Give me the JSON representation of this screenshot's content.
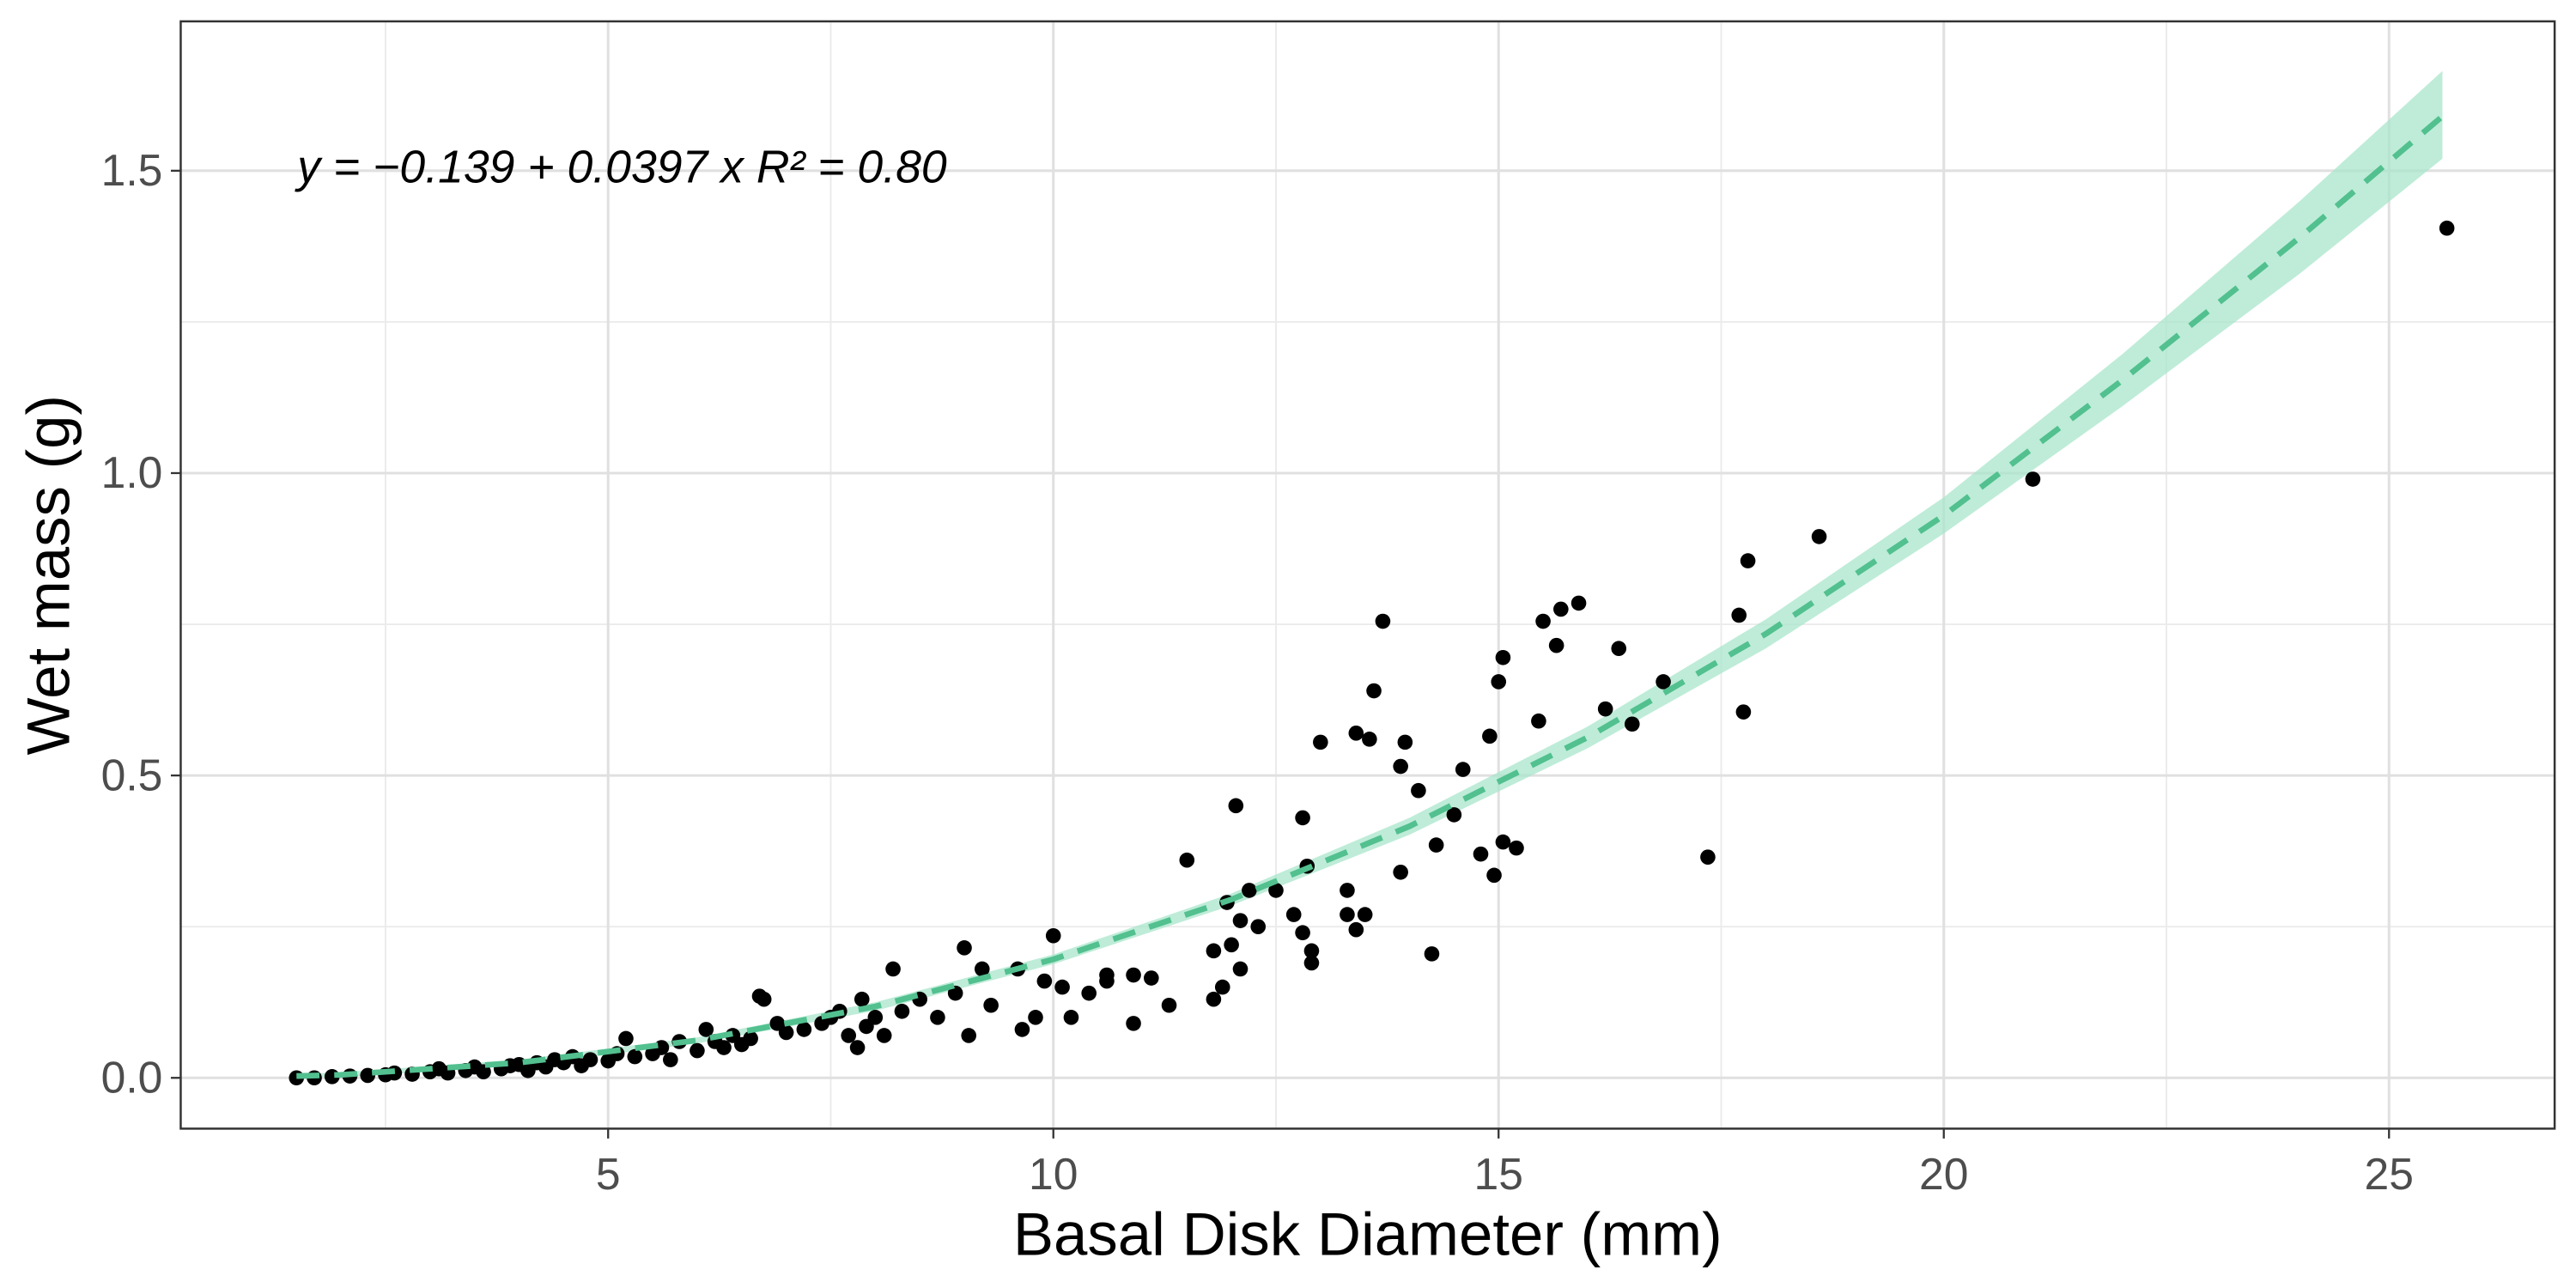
{
  "chart_data": {
    "type": "scatter",
    "x_label": "Basal Disk Diameter (mm)",
    "y_label": "Wet mass (g)",
    "annotation": "y = −0.139 + 0.0397 x   R² = 0.80",
    "xlim": [
      0.2,
      26.86
    ],
    "ylim": [
      -0.084,
      1.747
    ],
    "xticks": [
      5,
      10,
      15,
      20,
      25
    ],
    "yticks": [
      {
        "value": 0,
        "label": "0.0"
      },
      0.5,
      {
        "value": 1,
        "label": "1.0"
      },
      1.5
    ],
    "x_minor_ticks": [
      2.5,
      7.5,
      12.5,
      17.5,
      22.5
    ],
    "y_minor_ticks": [
      0.25,
      0.75,
      1.25
    ],
    "grid": true,
    "points": {
      "color": "#000000",
      "x": [
        1.5,
        1.7,
        1.9,
        2.1,
        2.3,
        2.5,
        2.6,
        2.8,
        3.0,
        3.1,
        3.2,
        3.4,
        3.5,
        3.6,
        3.8,
        3.9,
        4.0,
        4.1,
        4.2,
        4.3,
        4.4,
        4.5,
        4.6,
        4.7,
        4.8,
        5.0,
        5.1,
        5.2,
        5.3,
        5.5,
        5.6,
        5.7,
        5.8,
        6.0,
        6.1,
        6.2,
        6.3,
        6.4,
        6.5,
        6.6,
        6.7,
        6.75,
        6.9,
        7.0,
        7.2,
        7.4,
        7.5,
        7.6,
        7.7,
        7.8,
        7.85,
        7.9,
        8.0,
        8.1,
        8.2,
        8.3,
        8.5,
        8.7,
        8.9,
        9.0,
        9.05,
        9.2,
        9.3,
        9.6,
        9.65,
        9.8,
        9.9,
        10.0,
        10.1,
        10.2,
        10.4,
        10.6,
        10.6,
        10.9,
        10.9,
        11.1,
        11.3,
        11.5,
        11.8,
        11.8,
        11.9,
        11.95,
        12.0,
        12.05,
        12.1,
        12.1,
        12.2,
        12.3,
        12.5,
        12.7,
        12.8,
        12.8,
        12.85,
        12.9,
        12.9,
        13.0,
        13.3,
        13.3,
        13.4,
        13.4,
        13.5,
        13.55,
        13.6,
        13.7,
        13.9,
        13.95,
        13.9,
        14.1,
        14.25,
        14.3,
        14.5,
        14.6,
        14.8,
        14.9,
        14.95,
        15.0,
        15.05,
        15.05,
        15.2,
        15.45,
        15.5,
        15.65,
        15.7,
        15.9,
        16.2,
        16.35,
        16.5,
        16.85,
        17.35,
        17.7,
        17.75,
        17.8,
        18.6,
        21.0,
        25.65
      ],
      "y": [
        0.0,
        0.0,
        0.002,
        0.003,
        0.004,
        0.005,
        0.008,
        0.006,
        0.01,
        0.015,
        0.008,
        0.012,
        0.018,
        0.01,
        0.015,
        0.02,
        0.022,
        0.012,
        0.025,
        0.018,
        0.03,
        0.025,
        0.035,
        0.02,
        0.03,
        0.028,
        0.04,
        0.065,
        0.035,
        0.04,
        0.05,
        0.03,
        0.06,
        0.045,
        0.08,
        0.06,
        0.05,
        0.07,
        0.055,
        0.065,
        0.135,
        0.13,
        0.09,
        0.075,
        0.08,
        0.09,
        0.1,
        0.11,
        0.07,
        0.05,
        0.13,
        0.085,
        0.1,
        0.07,
        0.18,
        0.11,
        0.13,
        0.1,
        0.14,
        0.215,
        0.07,
        0.18,
        0.12,
        0.18,
        0.08,
        0.1,
        0.16,
        0.235,
        0.15,
        0.1,
        0.14,
        0.16,
        0.17,
        0.09,
        0.17,
        0.165,
        0.12,
        0.36,
        0.21,
        0.13,
        0.15,
        0.29,
        0.22,
        0.45,
        0.26,
        0.18,
        0.31,
        0.25,
        0.31,
        0.27,
        0.43,
        0.24,
        0.35,
        0.19,
        0.21,
        0.555,
        0.31,
        0.27,
        0.57,
        0.245,
        0.27,
        0.56,
        0.64,
        0.755,
        0.515,
        0.555,
        0.34,
        0.475,
        0.205,
        0.385,
        0.435,
        0.51,
        0.37,
        0.565,
        0.335,
        0.655,
        0.695,
        0.39,
        0.38,
        0.59,
        0.755,
        0.715,
        0.775,
        0.785,
        0.61,
        0.71,
        0.585,
        0.655,
        0.365,
        0.765,
        0.605,
        0.855,
        0.895,
        0.99,
        1.405
      ]
    },
    "fit": {
      "color": "#52c08f",
      "ribbon_color": "#a8e5cb",
      "dashed": true,
      "x": [
        1.5,
        2,
        4,
        6,
        8,
        10,
        12,
        14,
        16,
        18,
        20,
        22,
        24,
        25.6
      ],
      "y": [
        0.003,
        0.005,
        0.025,
        0.062,
        0.118,
        0.196,
        0.295,
        0.416,
        0.563,
        0.734,
        0.93,
        1.153,
        1.39,
        1.59
      ],
      "lower": [
        0.0,
        0.001,
        0.02,
        0.057,
        0.111,
        0.188,
        0.285,
        0.402,
        0.545,
        0.71,
        0.9,
        1.11,
        1.33,
        1.52
      ],
      "upper": [
        0.006,
        0.009,
        0.03,
        0.067,
        0.125,
        0.204,
        0.305,
        0.43,
        0.581,
        0.758,
        0.96,
        1.196,
        1.45,
        1.665
      ]
    }
  }
}
